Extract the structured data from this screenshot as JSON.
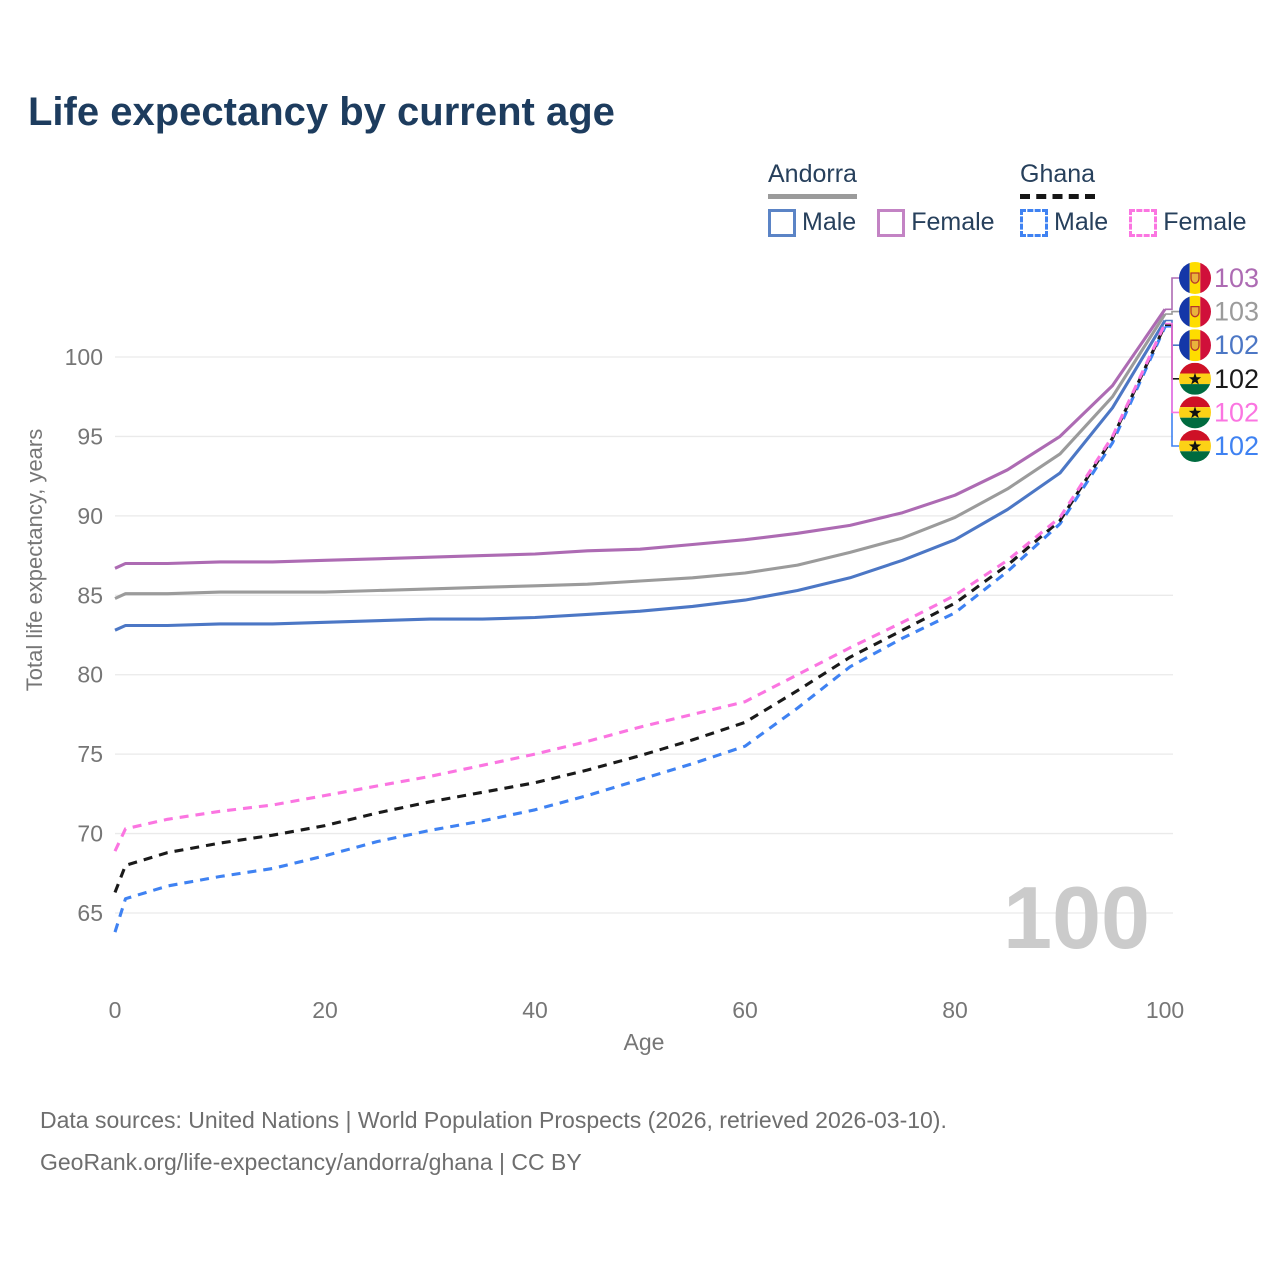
{
  "title": "Life expectancy by current age",
  "legend": {
    "groups": [
      {
        "name": "Andorra",
        "line_style": "solid",
        "line_color": "#9b9b9b",
        "items": [
          {
            "label": "Male",
            "color": "#4c77c5",
            "dashed": false
          },
          {
            "label": "Female",
            "color": "#ad6bb3",
            "dashed": false
          }
        ]
      },
      {
        "name": "Ghana",
        "line_style": "dashed",
        "line_color": "#161616",
        "items": [
          {
            "label": "Male",
            "color": "#3f82f2",
            "dashed": true
          },
          {
            "label": "Female",
            "color": "#fb75e1",
            "dashed": true
          }
        ]
      }
    ]
  },
  "watermark": "100",
  "footer": {
    "line1": "Data sources: United Nations | World Population Prospects (2026, retrieved 2026-03-10).",
    "line2": "GeoRank.org/life-expectancy/andorra/ghana | CC BY"
  },
  "chart_data": {
    "type": "line",
    "title": "Life expectancy by current age",
    "xlabel": "Age",
    "ylabel": "Total life expectancy, years",
    "x_ticks": [
      0,
      20,
      40,
      60,
      80,
      100
    ],
    "y_ticks": [
      65,
      70,
      75,
      80,
      85,
      90,
      95,
      100
    ],
    "xlim": [
      0,
      100
    ],
    "ylim": [
      63,
      104
    ],
    "grid": "horizontal",
    "ages": [
      0,
      1,
      5,
      10,
      15,
      20,
      25,
      30,
      35,
      40,
      45,
      50,
      55,
      60,
      65,
      70,
      75,
      80,
      85,
      90,
      95,
      100
    ],
    "series": [
      {
        "name": "Andorra Male",
        "country": "Andorra",
        "sex": "Male",
        "color": "#4c77c5",
        "dashed": false,
        "end_row": 2,
        "values": [
          82.8,
          83.1,
          83.1,
          83.2,
          83.2,
          83.3,
          83.4,
          83.5,
          83.5,
          83.6,
          83.8,
          84.0,
          84.3,
          84.7,
          85.3,
          86.1,
          87.2,
          88.5,
          90.4,
          92.7,
          96.8,
          102.3
        ]
      },
      {
        "name": "Andorra",
        "country": "Andorra",
        "sex": "Both",
        "color": "#9b9b9b",
        "dashed": false,
        "end_row": 1,
        "values": [
          84.8,
          85.1,
          85.1,
          85.2,
          85.2,
          85.2,
          85.3,
          85.4,
          85.5,
          85.6,
          85.7,
          85.9,
          86.1,
          86.4,
          86.9,
          87.7,
          88.6,
          89.9,
          91.7,
          93.9,
          97.5,
          102.7
        ]
      },
      {
        "name": "Andorra Female",
        "country": "Andorra",
        "sex": "Female",
        "color": "#ad6bb3",
        "dashed": false,
        "end_row": 0,
        "values": [
          86.7,
          87.0,
          87.0,
          87.1,
          87.1,
          87.2,
          87.3,
          87.4,
          87.5,
          87.6,
          87.8,
          87.9,
          88.2,
          88.5,
          88.9,
          89.4,
          90.2,
          91.3,
          92.9,
          95.0,
          98.2,
          103.0
        ]
      },
      {
        "name": "Ghana Male",
        "country": "Ghana",
        "sex": "Male",
        "color": "#3f82f2",
        "dashed": true,
        "end_row": 5,
        "values": [
          63.8,
          65.9,
          66.7,
          67.3,
          67.8,
          68.6,
          69.5,
          70.2,
          70.8,
          71.5,
          72.4,
          73.4,
          74.4,
          75.5,
          77.9,
          80.5,
          82.3,
          83.9,
          86.5,
          89.5,
          94.6,
          101.9
        ]
      },
      {
        "name": "Ghana",
        "country": "Ghana",
        "sex": "Both",
        "color": "#1a1a1a",
        "dashed": true,
        "end_row": 3,
        "values": [
          66.3,
          68.0,
          68.8,
          69.4,
          69.9,
          70.5,
          71.3,
          72.0,
          72.6,
          73.2,
          74.0,
          74.9,
          75.9,
          77.0,
          79.0,
          81.1,
          82.8,
          84.5,
          86.9,
          89.7,
          94.9,
          102.0
        ]
      },
      {
        "name": "Ghana Female",
        "country": "Ghana",
        "sex": "Female",
        "color": "#fb75e1",
        "dashed": true,
        "end_row": 4,
        "values": [
          68.9,
          70.3,
          70.9,
          71.4,
          71.8,
          72.4,
          73.0,
          73.6,
          74.3,
          75.0,
          75.8,
          76.7,
          77.5,
          78.3,
          80.0,
          81.7,
          83.3,
          85.0,
          87.2,
          89.9,
          95.0,
          102.1
        ]
      }
    ],
    "end_labels": [
      {
        "flag": "andorra",
        "value": "103",
        "color": "#ad6bb3"
      },
      {
        "flag": "andorra",
        "value": "103",
        "color": "#9b9b9b"
      },
      {
        "flag": "andorra",
        "value": "102",
        "color": "#4c77c5"
      },
      {
        "flag": "ghana",
        "value": "102",
        "color": "#1a1a1a"
      },
      {
        "flag": "ghana",
        "value": "102",
        "color": "#fb75e1"
      },
      {
        "flag": "ghana",
        "value": "102",
        "color": "#3f82f2"
      }
    ]
  }
}
